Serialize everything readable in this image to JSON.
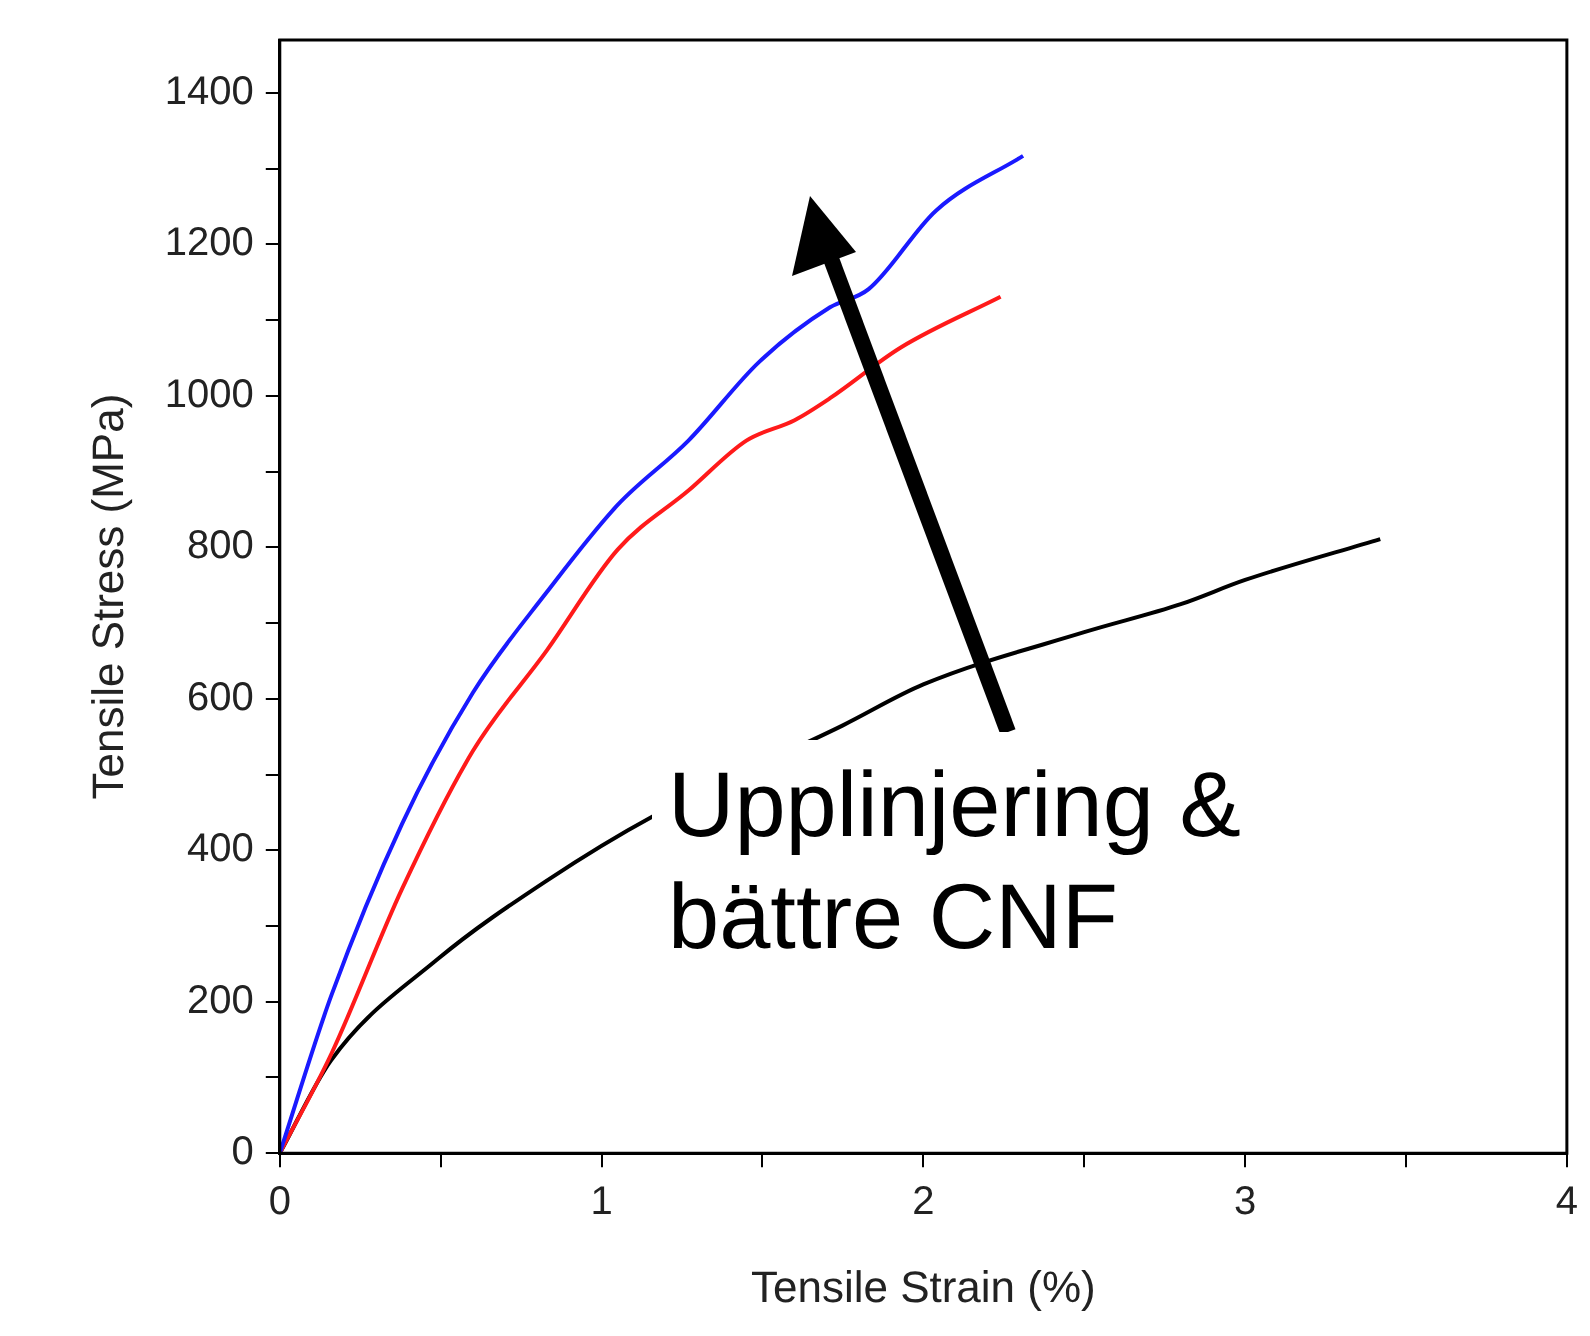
{
  "chart_data": {
    "type": "line",
    "xlabel": "Tensile Strain (%)",
    "ylabel": "Tensile Stress (MPa)",
    "xlim": [
      0,
      4
    ],
    "ylim": [
      0,
      1470
    ],
    "xticks": [
      0,
      {
        "value": 0.5,
        "label": null
      },
      1,
      {
        "value": 1.5,
        "label": null
      },
      2,
      {
        "value": 2.5,
        "label": null
      },
      3,
      {
        "value": 3.5,
        "label": null
      },
      4
    ],
    "yticks": [
      0,
      {
        "value": 100,
        "label": null
      },
      200,
      {
        "value": 300,
        "label": null
      },
      400,
      {
        "value": 500,
        "label": null
      },
      600,
      {
        "value": 700,
        "label": null
      },
      800,
      {
        "value": 900,
        "label": null
      },
      1000,
      {
        "value": 1100,
        "label": null
      },
      1200,
      {
        "value": 1300,
        "label": null
      },
      1400
    ],
    "grid": false,
    "legend": false,
    "marker": "none",
    "line_style": "solid",
    "series": [
      {
        "color": "#1a1aff",
        "x": [
          0,
          0.16,
          0.38,
          0.6,
          0.83,
          1.05,
          1.27,
          1.49,
          1.71,
          1.83,
          2.04,
          2.31
        ],
        "values": [
          0,
          208,
          435,
          608,
          741,
          856,
          941,
          1045,
          1117,
          1141,
          1245,
          1317
        ]
      },
      {
        "color": "#ff1a1a",
        "x": [
          0,
          0.16,
          0.38,
          0.6,
          0.83,
          1.05,
          1.27,
          1.45,
          1.6,
          1.71,
          1.93,
          2.24
        ],
        "values": [
          0,
          131,
          349,
          531,
          664,
          797,
          875,
          941,
          968,
          997,
          1064,
          1131
        ]
      },
      {
        "color": "#000000",
        "x": [
          0,
          0.16,
          0.49,
          0.83,
          1.16,
          1.75,
          2,
          2.5,
          2.8,
          3,
          3.42
        ],
        "values": [
          0,
          123,
          256,
          360,
          445,
          565,
          619,
          688,
          725,
          757,
          811
        ]
      }
    ],
    "annotations": [
      "Upplinjering & bättre CNF"
    ]
  }
}
